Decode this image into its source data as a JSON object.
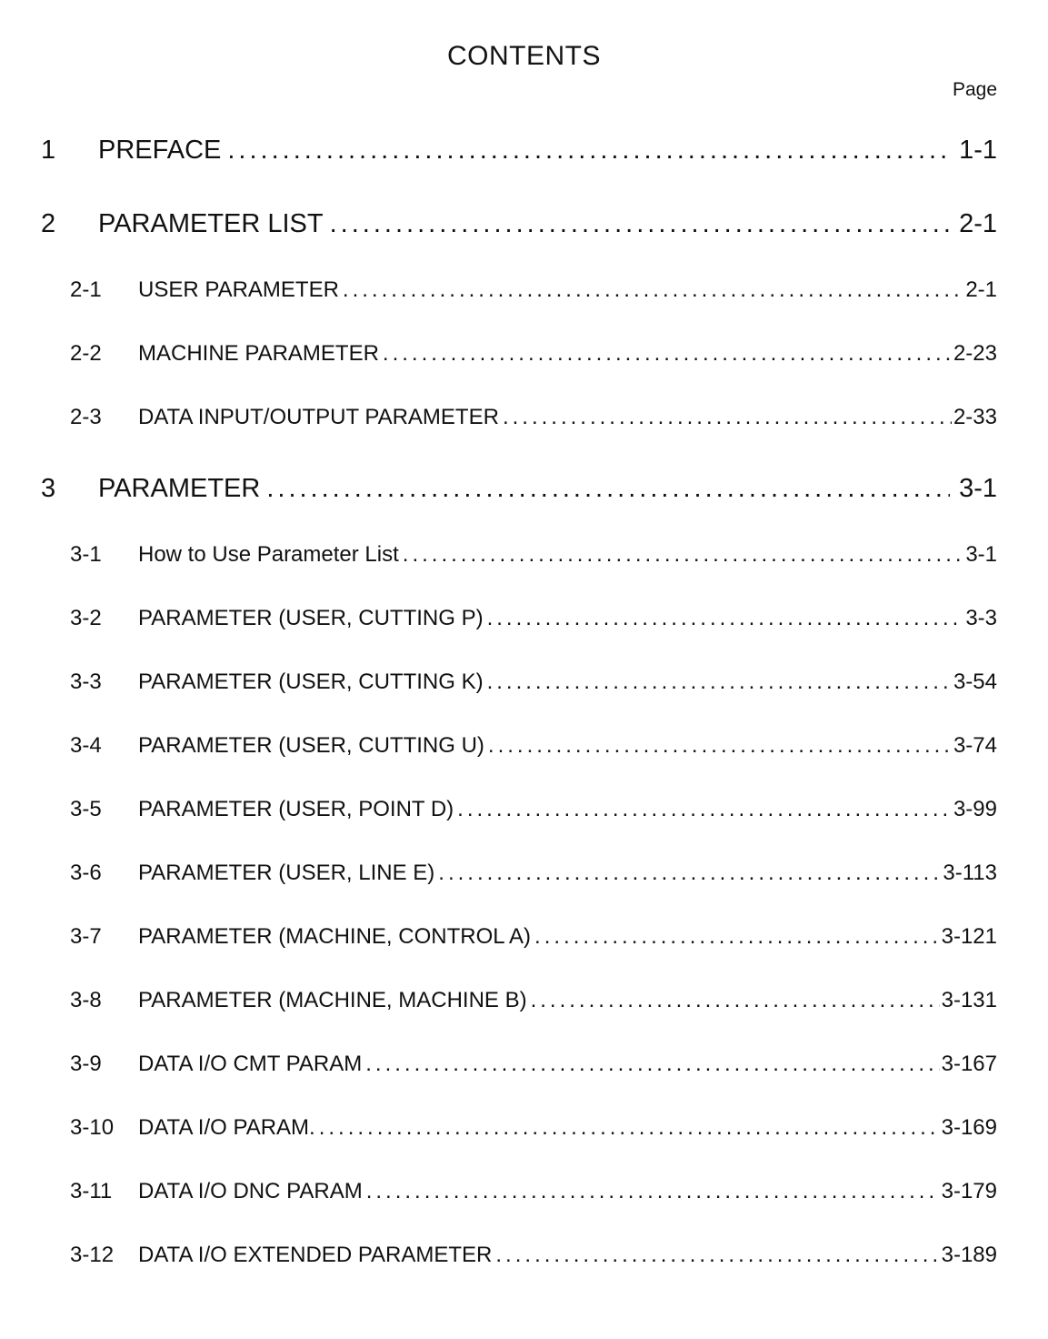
{
  "page": {
    "title": "CONTENTS",
    "page_column_label": "Page"
  },
  "toc": {
    "entries": [
      {
        "level": 1,
        "number": "1",
        "title": "PREFACE",
        "page": "1-1"
      },
      {
        "level": 1,
        "number": "2",
        "title": "PARAMETER LIST",
        "page": "2-1"
      },
      {
        "level": 2,
        "number": "2-1",
        "title": "USER PARAMETER",
        "page": "2-1"
      },
      {
        "level": 2,
        "number": "2-2",
        "title": "MACHINE PARAMETER",
        "page": "2-23"
      },
      {
        "level": 2,
        "number": "2-3",
        "title": "DATA INPUT/OUTPUT PARAMETER",
        "page": "2-33"
      },
      {
        "level": 1,
        "number": "3",
        "title": "PARAMETER",
        "page": "3-1"
      },
      {
        "level": 2,
        "number": "3-1",
        "title": "How to Use Parameter List",
        "page": "3-1"
      },
      {
        "level": 2,
        "number": "3-2",
        "title": "PARAMETER (USER, CUTTING P)",
        "page": "3-3"
      },
      {
        "level": 2,
        "number": "3-3",
        "title": "PARAMETER (USER, CUTTING K)",
        "page": "3-54"
      },
      {
        "level": 2,
        "number": "3-4",
        "title": "PARAMETER (USER, CUTTING U)",
        "page": "3-74"
      },
      {
        "level": 2,
        "number": "3-5",
        "title": "PARAMETER (USER, POINT D)",
        "page": "3-99"
      },
      {
        "level": 2,
        "number": "3-6",
        "title": "PARAMETER (USER, LINE E)",
        "page": "3-113"
      },
      {
        "level": 2,
        "number": "3-7",
        "title": "PARAMETER (MACHINE, CONTROL A)",
        "page": "3-121"
      },
      {
        "level": 2,
        "number": "3-8",
        "title": "PARAMETER (MACHINE, MACHINE B)",
        "page": "3-131"
      },
      {
        "level": 2,
        "number": "3-9",
        "title": "DATA I/O CMT PARAM",
        "page": "3-167"
      },
      {
        "level": 2,
        "number": "3-10",
        "title": "DATA I/O PARAM.",
        "page": "3-169"
      },
      {
        "level": 2,
        "number": "3-11",
        "title": "DATA I/O DNC PARAM",
        "page": "3-179"
      },
      {
        "level": 2,
        "number": "3-12",
        "title": "DATA I/O EXTENDED PARAMETER",
        "page": "3-189"
      }
    ]
  }
}
